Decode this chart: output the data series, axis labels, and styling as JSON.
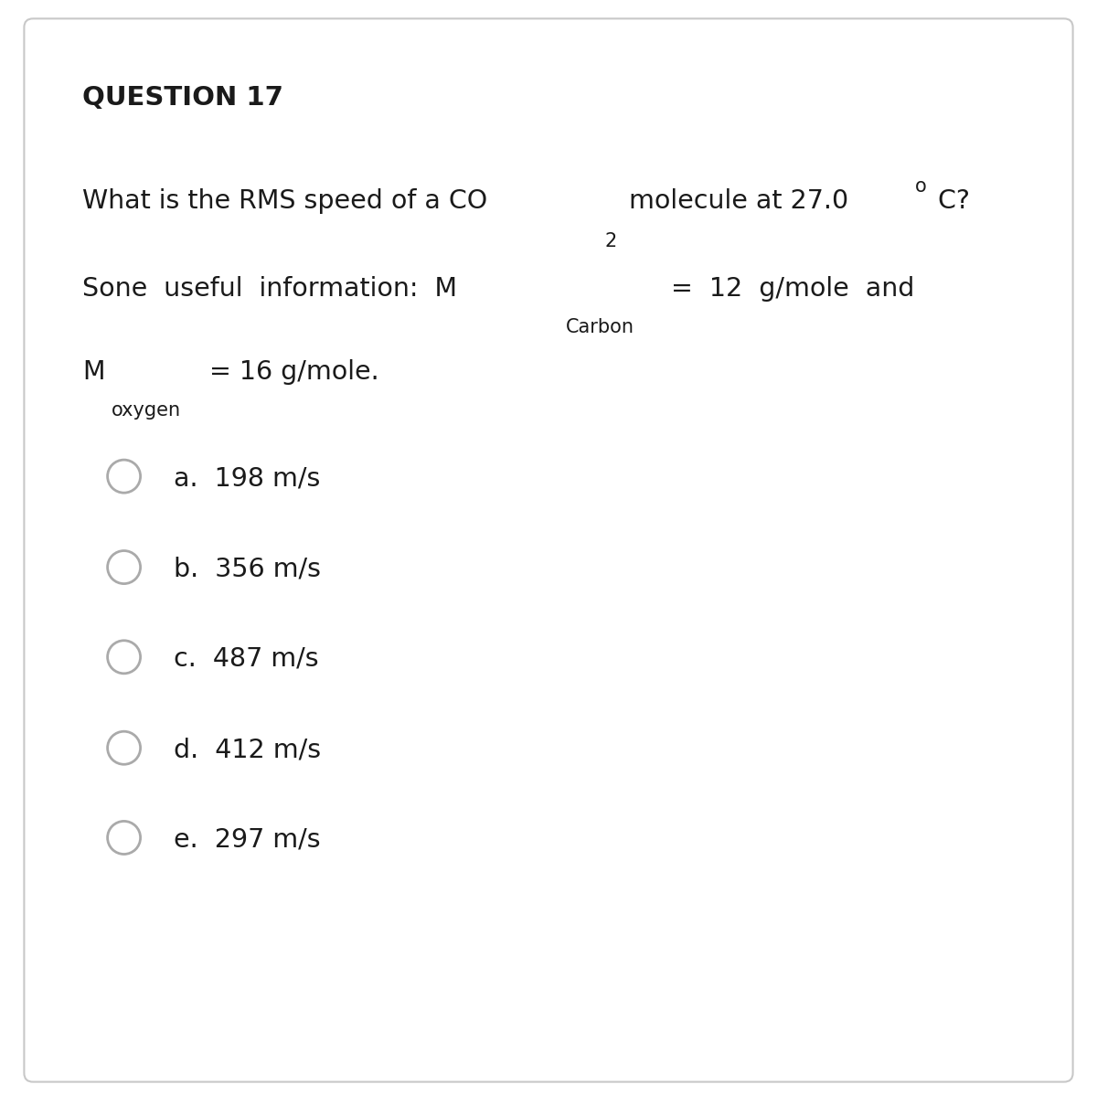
{
  "title": "QUESTION 17",
  "background_color": "#ffffff",
  "border_color": "#c8c8c8",
  "text_color": "#1a1a1a",
  "circle_color": "#aaaaaa",
  "fig_width": 12.0,
  "fig_height": 11.98,
  "dpi": 100,
  "title_fontsize": 21,
  "question_fontsize": 20.5,
  "sub_fontsize": 15,
  "option_fontsize": 20.5,
  "options": [
    {
      "label": "a.",
      "text": "  198 m/s"
    },
    {
      "label": "b.",
      "text": "  356 m/s"
    },
    {
      "label": "c.",
      "text": "  487 m/s"
    },
    {
      "label": "d.",
      "text": "  412 m/s"
    },
    {
      "label": "e.",
      "text": "  297 m/s"
    }
  ]
}
